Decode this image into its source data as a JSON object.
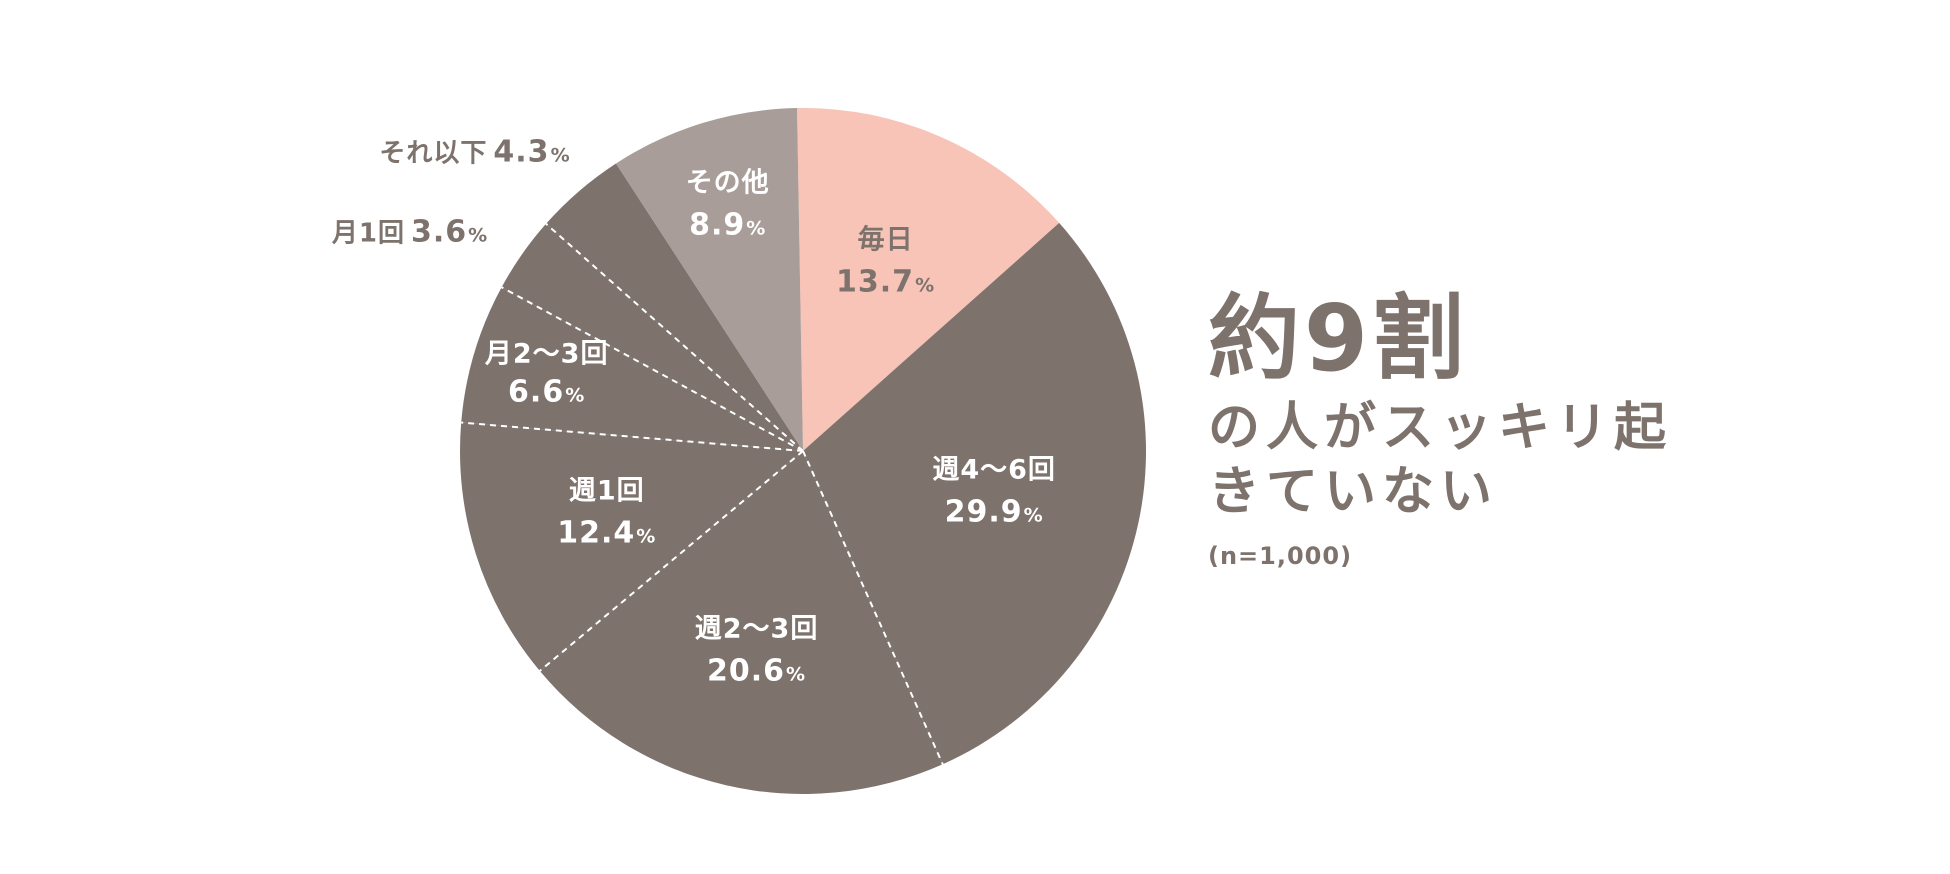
{
  "chart_data": {
    "type": "pie",
    "start_angle_deg": -1,
    "direction": "clockwise",
    "slices": [
      {
        "label": "毎日",
        "value": 13.7,
        "display": "13.7",
        "unit": "%",
        "color": "#f7c4b7",
        "text_color": "#7d726c",
        "label_position": "inside",
        "separator": "solid"
      },
      {
        "label": "週4〜6回",
        "value": 29.9,
        "display": "29.9",
        "unit": "%",
        "color": "#7d726c",
        "text_color": "#ffffff",
        "label_position": "inside",
        "separator": "solid"
      },
      {
        "label": "週2〜3回",
        "value": 20.6,
        "display": "20.6",
        "unit": "%",
        "color": "#7d726c",
        "text_color": "#ffffff",
        "label_position": "inside",
        "separator": "dashed"
      },
      {
        "label": "週1回",
        "value": 12.4,
        "display": "12.4",
        "unit": "%",
        "color": "#7d726c",
        "text_color": "#ffffff",
        "label_position": "inside",
        "separator": "dashed"
      },
      {
        "label": "月2〜3回",
        "value": 6.6,
        "display": "6.6",
        "unit": "%",
        "color": "#7d726c",
        "text_color": "#ffffff",
        "label_position": "inside",
        "separator": "dashed"
      },
      {
        "label": "月1回",
        "value": 3.6,
        "display": "3.6",
        "unit": "%",
        "color": "#7d726c",
        "text_color": "#7d726c",
        "label_position": "outside",
        "separator": "dashed"
      },
      {
        "label": "それ以下",
        "value": 4.3,
        "display": "4.3",
        "unit": "%",
        "color": "#7d726c",
        "text_color": "#7d726c",
        "label_position": "outside",
        "separator": "dashed"
      },
      {
        "label": "その他",
        "value": 8.9,
        "display": "8.9",
        "unit": "%",
        "color": "#a89d98",
        "text_color": "#ffffff",
        "label_position": "inside",
        "separator": "solid"
      }
    ]
  },
  "headline": {
    "big": "約9割",
    "sub": "の人がスッキリ起きていない",
    "note": "(n=1,000)"
  },
  "colors": {
    "text": "#7d726c",
    "highlight": "#f7c4b7",
    "other": "#a89d98",
    "main": "#7d726c"
  }
}
